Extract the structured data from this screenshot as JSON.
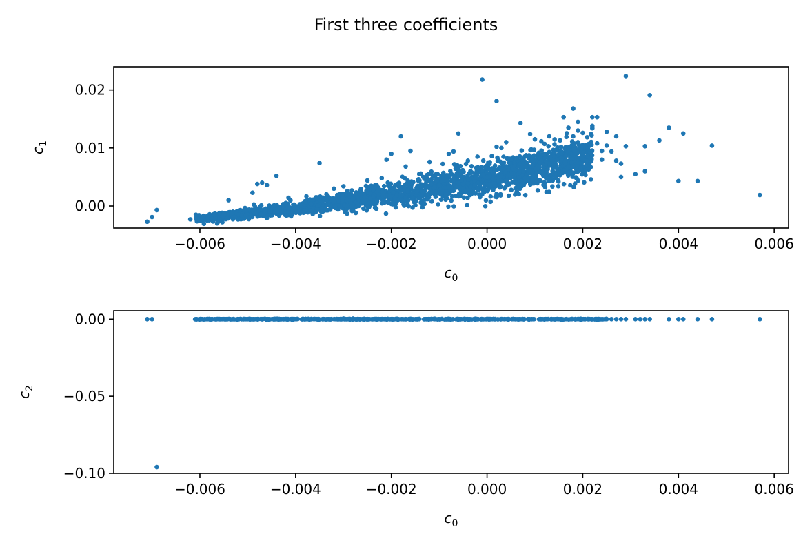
{
  "figure": {
    "title": "First three coefficients"
  },
  "colors": {
    "marker": "#1f77b4",
    "axes": "#000000",
    "background": "#ffffff"
  },
  "chart_data": [
    {
      "type": "scatter",
      "title": "",
      "xlabel_base": "c",
      "xlabel_sub": "0",
      "ylabel_base": "c",
      "ylabel_sub": "1",
      "xlim": [
        -0.0078,
        0.0063
      ],
      "ylim": [
        -0.0038,
        0.024
      ],
      "xticks": [
        -0.006,
        -0.004,
        -0.002,
        0.0,
        0.002,
        0.004,
        0.006
      ],
      "xtick_labels": [
        "−0.006",
        "−0.004",
        "−0.002",
        "0.000",
        "0.002",
        "0.004",
        "0.006"
      ],
      "yticks": [
        0.0,
        0.01,
        0.02
      ],
      "ytick_labels": [
        "0.00",
        "0.01",
        "0.02"
      ],
      "grid": false,
      "trend_description": {
        "x_range": [
          -0.0061,
          0.0022
        ],
        "y_at_xmin": -0.0022,
        "y_at_xmax": 0.0085,
        "points_count": 2200
      },
      "points": [
        [
          -0.0071,
          -0.0027
        ],
        [
          -0.007,
          -0.0019
        ],
        [
          -0.0069,
          -0.0007
        ],
        [
          -0.0062,
          -0.0023
        ],
        [
          -0.0054,
          0.001
        ],
        [
          -0.0049,
          0.0023
        ],
        [
          -0.0048,
          0.0038
        ],
        [
          -0.0047,
          0.004
        ],
        [
          -0.0046,
          0.0036
        ],
        [
          -0.0044,
          0.0052
        ],
        [
          -0.0035,
          0.0074
        ],
        [
          -0.0032,
          0.003
        ],
        [
          -0.003,
          0.0034
        ],
        [
          -0.0025,
          0.0044
        ],
        [
          -0.0022,
          0.0048
        ],
        [
          -0.0021,
          0.008
        ],
        [
          -0.002,
          0.009
        ],
        [
          -0.0018,
          0.012
        ],
        [
          -0.0017,
          0.0068
        ],
        [
          -0.0016,
          0.0095
        ],
        [
          -0.0012,
          0.0076
        ],
        [
          -0.0008,
          0.009
        ],
        [
          -0.0007,
          0.0094
        ],
        [
          -0.0006,
          0.0125
        ],
        [
          -0.0004,
          0.0078
        ],
        [
          -0.0002,
          0.0085
        ],
        [
          -0.0001,
          0.0218
        ],
        [
          0.0001,
          0.0086
        ],
        [
          0.0002,
          0.0102
        ],
        [
          0.0002,
          0.0181
        ],
        [
          0.0003,
          0.01
        ],
        [
          0.0004,
          0.011
        ],
        [
          0.0005,
          0.008
        ],
        [
          0.0007,
          0.0143
        ],
        [
          0.0008,
          0.0068
        ],
        [
          0.0009,
          0.0124
        ],
        [
          0.001,
          0.0115
        ],
        [
          0.0011,
          0.0075
        ],
        [
          0.0013,
          0.012
        ],
        [
          0.0013,
          0.0093
        ],
        [
          0.0015,
          0.0095
        ],
        [
          0.0016,
          0.0153
        ],
        [
          0.0017,
          0.0135
        ],
        [
          0.0017,
          0.01
        ],
        [
          0.0018,
          0.0168
        ],
        [
          0.0018,
          0.012
        ],
        [
          0.0019,
          0.013
        ],
        [
          0.0019,
          0.0145
        ],
        [
          0.0019,
          0.011
        ],
        [
          0.002,
          0.0126
        ],
        [
          0.002,
          0.0105
        ],
        [
          0.0021,
          0.0087
        ],
        [
          0.0021,
          0.0099
        ],
        [
          0.0022,
          0.0134
        ],
        [
          0.0022,
          0.0153
        ],
        [
          0.0022,
          0.0138
        ],
        [
          0.0023,
          0.0108
        ],
        [
          0.0023,
          0.0153
        ],
        [
          0.0024,
          0.008
        ],
        [
          0.0024,
          0.0095
        ],
        [
          0.0025,
          0.0104
        ],
        [
          0.0025,
          0.0128
        ],
        [
          0.0026,
          0.0094
        ],
        [
          0.0027,
          0.012
        ],
        [
          0.0027,
          0.0078
        ],
        [
          0.0028,
          0.0073
        ],
        [
          0.0028,
          0.005
        ],
        [
          0.0029,
          0.0224
        ],
        [
          0.0029,
          0.0103
        ],
        [
          0.0031,
          0.0055
        ],
        [
          0.0033,
          0.006
        ],
        [
          0.0033,
          0.0103
        ],
        [
          0.0034,
          0.0191
        ],
        [
          0.0036,
          0.0113
        ],
        [
          0.0038,
          0.0135
        ],
        [
          0.004,
          0.0043
        ],
        [
          0.0041,
          0.0125
        ],
        [
          0.0044,
          0.0043
        ],
        [
          0.0047,
          0.0104
        ],
        [
          0.0057,
          0.0019
        ],
        [
          0.0,
          0.005
        ],
        [
          0.0006,
          0.004
        ],
        [
          0.0012,
          0.004
        ],
        [
          0.0015,
          0.006
        ],
        [
          0.0009,
          0.006
        ],
        [
          -0.0005,
          0.0038
        ],
        [
          -0.0028,
          0.0012
        ],
        [
          -0.0038,
          0.0007
        ]
      ]
    },
    {
      "type": "scatter",
      "title": "",
      "xlabel_base": "c",
      "xlabel_sub": "0",
      "ylabel_base": "c",
      "ylabel_sub": "2",
      "xlim": [
        -0.0078,
        0.0063
      ],
      "ylim": [
        -0.1,
        0.0055
      ],
      "xticks": [
        -0.006,
        -0.004,
        -0.002,
        0.0,
        0.002,
        0.004,
        0.006
      ],
      "xtick_labels": [
        "−0.006",
        "−0.004",
        "−0.002",
        "0.000",
        "0.002",
        "0.004",
        "0.006"
      ],
      "yticks": [
        0.0,
        -0.05,
        -0.1
      ],
      "ytick_labels": [
        "0.00",
        "−0.05",
        "−0.10"
      ],
      "grid": false,
      "dense_band": {
        "x_range": [
          -0.0061,
          0.0025
        ],
        "y": 0.0,
        "points_count": 600
      },
      "points": [
        [
          -0.0071,
          0.0
        ],
        [
          -0.007,
          0.0
        ],
        [
          -0.0069,
          -0.096
        ],
        [
          -0.003,
          0.0004
        ],
        [
          -0.0028,
          0.0004
        ],
        [
          0.002,
          0.0
        ],
        [
          0.0025,
          0.0
        ],
        [
          0.0026,
          0.0
        ],
        [
          0.0027,
          0.0
        ],
        [
          0.0028,
          0.0
        ],
        [
          0.0029,
          0.0
        ],
        [
          0.0031,
          0.0
        ],
        [
          0.0032,
          0.0
        ],
        [
          0.0033,
          0.0
        ],
        [
          0.0034,
          0.0
        ],
        [
          0.0038,
          0.0
        ],
        [
          0.004,
          0.0
        ],
        [
          0.0041,
          0.0
        ],
        [
          0.0044,
          0.0
        ],
        [
          0.0047,
          0.0
        ],
        [
          0.0057,
          0.0
        ]
      ]
    }
  ]
}
